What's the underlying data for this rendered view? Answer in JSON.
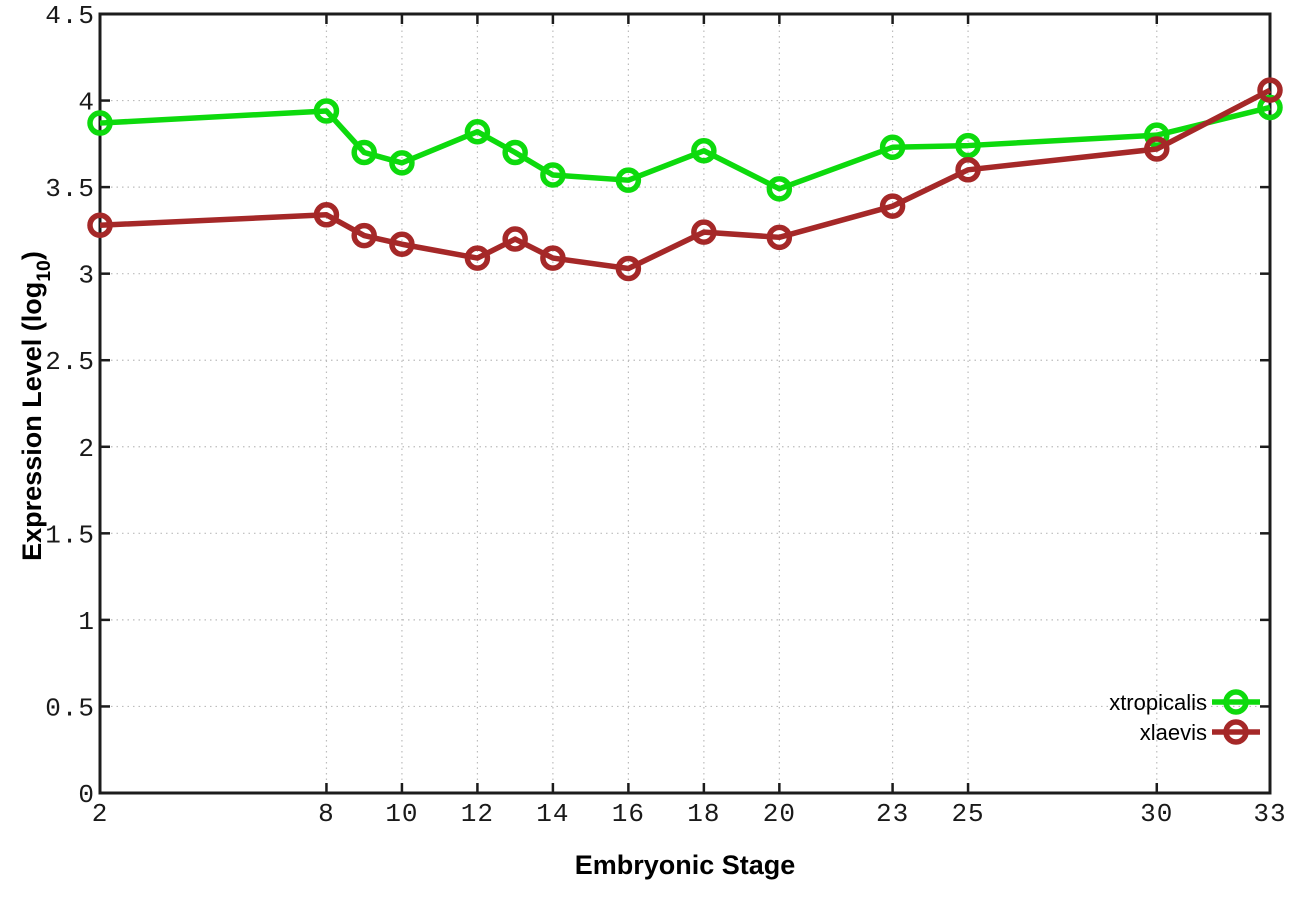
{
  "chart_data": {
    "type": "line",
    "title": "",
    "xlabel": "Embryonic Stage",
    "ylabel": "Expression Level (log10)",
    "ylabel_parts": {
      "prefix": "Expression Level (log",
      "subscript": "10",
      "suffix": ")"
    },
    "xlim": [
      2,
      33
    ],
    "ylim": [
      0,
      4.5
    ],
    "x_ticks": [
      2,
      8,
      10,
      12,
      14,
      16,
      18,
      20,
      23,
      25,
      30,
      33
    ],
    "y_ticks": [
      0,
      0.5,
      1,
      1.5,
      2,
      2.5,
      3,
      3.5,
      4,
      4.5
    ],
    "grid": true,
    "legend_position": "inside-bottom-right",
    "x": [
      2,
      8,
      9,
      10,
      12,
      13,
      14,
      16,
      18,
      20,
      23,
      25,
      30,
      33
    ],
    "series": [
      {
        "name": "xtropicalis",
        "color": "#0dda0d",
        "marker": "open-circle",
        "values": [
          3.87,
          3.94,
          3.7,
          3.64,
          3.82,
          3.7,
          3.57,
          3.54,
          3.71,
          3.49,
          3.73,
          3.74,
          3.8,
          3.96
        ]
      },
      {
        "name": "xlaevis",
        "color": "#a52828",
        "marker": "open-circle",
        "values": [
          3.28,
          3.34,
          3.22,
          3.17,
          3.09,
          3.2,
          3.09,
          3.03,
          3.24,
          3.21,
          3.39,
          3.6,
          3.72,
          4.06
        ]
      }
    ],
    "colors": {
      "border": "#1c1c1c",
      "grid": "#bcbcbc",
      "tick_text": "#1a1a1a",
      "background": "#ffffff"
    }
  }
}
